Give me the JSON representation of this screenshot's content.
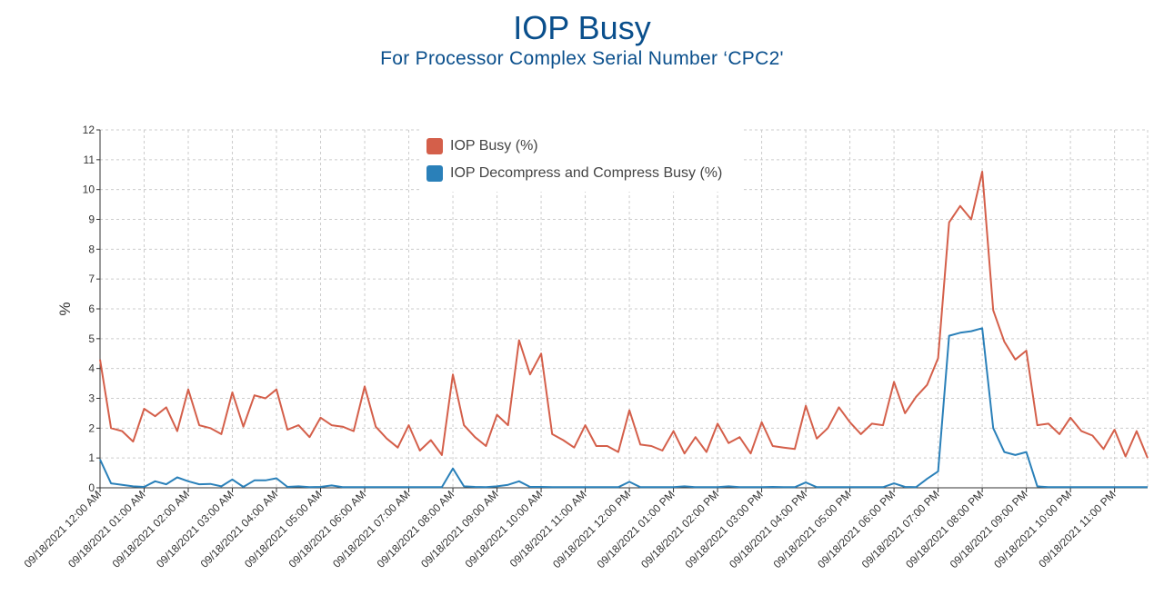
{
  "header": {
    "title": "IOP Busy",
    "subtitle": "For Processor Complex Serial Number ‘CPC2'"
  },
  "colors": {
    "title": "#0a4f8c",
    "iop_busy": "#d45f4a",
    "iop_decompress": "#2a80b9",
    "grid": "#cccccc",
    "axis": "#333333"
  },
  "chart_data": {
    "type": "line",
    "xlabel": "",
    "ylabel": "%",
    "ylim": [
      0,
      12
    ],
    "yticks": [
      0,
      1,
      2,
      3,
      4,
      5,
      6,
      7,
      8,
      9,
      10,
      11,
      12
    ],
    "grid": true,
    "legend_position": "top-center",
    "xlim": [
      0,
      23.75
    ],
    "x_unit": "hours from 09/18/2021 12:00 AM, 15-minute samples",
    "x_tick_labels": [
      "09/18/2021 12:00 AM",
      "09/18/2021 01:00 AM",
      "09/18/2021 02:00 AM",
      "09/18/2021 03:00 AM",
      "09/18/2021 04:00 AM",
      "09/18/2021 05:00 AM",
      "09/18/2021 06:00 AM",
      "09/18/2021 07:00 AM",
      "09/18/2021 08:00 AM",
      "09/18/2021 09:00 AM",
      "09/18/2021 10:00 AM",
      "09/18/2021 11:00 AM",
      "09/18/2021 12:00 PM",
      "09/18/2021 01:00 PM",
      "09/18/2021 02:00 PM",
      "09/18/2021 03:00 PM",
      "09/18/2021 04:00 PM",
      "09/18/2021 05:00 PM",
      "09/18/2021 06:00 PM",
      "09/18/2021 07:00 PM",
      "09/18/2021 08:00 PM",
      "09/18/2021 09:00 PM",
      "09/18/2021 10:00 PM",
      "09/18/2021 11:00 PM"
    ],
    "series": [
      {
        "name": "IOP Busy (%)",
        "values": [
          4.3,
          2.0,
          1.9,
          1.55,
          2.65,
          2.4,
          2.7,
          1.9,
          3.3,
          2.1,
          2.0,
          1.8,
          3.2,
          2.05,
          3.1,
          3.0,
          3.3,
          1.95,
          2.1,
          1.7,
          2.35,
          2.1,
          2.05,
          1.9,
          3.4,
          2.05,
          1.65,
          1.35,
          2.1,
          1.25,
          1.6,
          1.1,
          3.8,
          2.1,
          1.7,
          1.4,
          2.45,
          2.1,
          4.95,
          3.8,
          4.5,
          1.8,
          1.6,
          1.35,
          2.1,
          1.4,
          1.4,
          1.2,
          2.6,
          1.45,
          1.4,
          1.25,
          1.9,
          1.15,
          1.7,
          1.2,
          2.15,
          1.5,
          1.7,
          1.15,
          2.2,
          1.4,
          1.35,
          1.3,
          2.75,
          1.65,
          2.0,
          2.7,
          2.2,
          1.8,
          2.15,
          2.1,
          3.55,
          2.5,
          3.05,
          3.45,
          4.35,
          8.9,
          9.45,
          9.0,
          10.6,
          5.95,
          4.9,
          4.3,
          4.6,
          2.1,
          2.15,
          1.8,
          2.35,
          1.9,
          1.75,
          1.3,
          1.95,
          1.05,
          1.9,
          1.0
        ]
      },
      {
        "name": "IOP Decompress and Compress Busy (%)",
        "values": [
          0.95,
          0.15,
          0.1,
          0.05,
          0.03,
          0.22,
          0.12,
          0.35,
          0.22,
          0.12,
          0.13,
          0.05,
          0.28,
          0.03,
          0.25,
          0.25,
          0.32,
          0.03,
          0.05,
          0.02,
          0.03,
          0.08,
          0.02,
          0.02,
          0.02,
          0.02,
          0.02,
          0.02,
          0.02,
          0.02,
          0.02,
          0.02,
          0.65,
          0.05,
          0.03,
          0.02,
          0.05,
          0.1,
          0.22,
          0.03,
          0.03,
          0.02,
          0.02,
          0.02,
          0.02,
          0.02,
          0.02,
          0.02,
          0.2,
          0.02,
          0.02,
          0.02,
          0.02,
          0.05,
          0.02,
          0.02,
          0.02,
          0.05,
          0.02,
          0.02,
          0.02,
          0.03,
          0.02,
          0.02,
          0.18,
          0.02,
          0.02,
          0.02,
          0.02,
          0.02,
          0.02,
          0.02,
          0.15,
          0.03,
          0.02,
          0.3,
          0.55,
          5.1,
          5.2,
          5.25,
          5.35,
          2.0,
          1.2,
          1.1,
          1.2,
          0.05,
          0.02,
          0.02,
          0.02,
          0.02,
          0.02,
          0.02,
          0.02,
          0.02,
          0.02,
          0.02
        ]
      }
    ]
  }
}
